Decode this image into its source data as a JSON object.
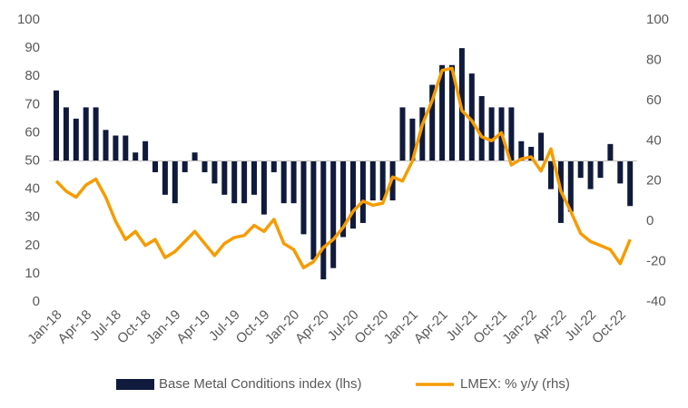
{
  "chart_data": {
    "type": "bar-line",
    "categories": [
      "Jan-18",
      null,
      null,
      "Apr-18",
      null,
      null,
      "Jul-18",
      null,
      null,
      "Oct-18",
      null,
      null,
      "Jan-19",
      null,
      null,
      "Apr-19",
      null,
      null,
      "Jul-19",
      null,
      null,
      "Oct-19",
      null,
      null,
      "Jan-20",
      null,
      null,
      "Apr-20",
      null,
      null,
      "Jul-20",
      null,
      null,
      "Oct-20",
      null,
      null,
      "Jan-21",
      null,
      null,
      "Apr-21",
      null,
      null,
      "Jul-21",
      null,
      null,
      "Oct-21",
      null,
      null,
      "Jan-22",
      null,
      null,
      "Apr-22",
      null,
      null,
      "Jul-22",
      null,
      null,
      "Oct-22",
      null
    ],
    "series": [
      {
        "name": "Base Metal Conditions index (lhs)",
        "color": "#0f1a3c",
        "axis": "y",
        "values": [
          75,
          69,
          65,
          69,
          69,
          61,
          59,
          59,
          53,
          57,
          46,
          38,
          35,
          46,
          53,
          46,
          42,
          38,
          35,
          35,
          38,
          31,
          46,
          35,
          35,
          24,
          15,
          8,
          12,
          23,
          26,
          28,
          36,
          36,
          36,
          69,
          65,
          69,
          77,
          84,
          84,
          90,
          81,
          73,
          69,
          69,
          69,
          57,
          55,
          60,
          40,
          28,
          32,
          44,
          40,
          44,
          56,
          42,
          34
        ]
      },
      {
        "name": "LMEX: % y/y (rhs)",
        "color": "#f59c00",
        "axis": "y2",
        "values": [
          20,
          15,
          12,
          18,
          21,
          12,
          0,
          -9,
          -5,
          -12,
          -9,
          -18,
          -15,
          -10,
          -5,
          -11,
          -17,
          -11,
          -8,
          -7,
          -2,
          -5,
          1,
          -11,
          -14,
          -23,
          -20,
          -13,
          -9,
          -3,
          5,
          10,
          8,
          9,
          22,
          20,
          30,
          48,
          60,
          75,
          76,
          55,
          50,
          42,
          40,
          44,
          28,
          31,
          32,
          25,
          36,
          15,
          5,
          -6,
          -10,
          -12,
          -14,
          -21,
          -9
        ]
      }
    ],
    "bar_base": 50,
    "ylim": [
      0,
      100
    ],
    "yticks": [
      0,
      10,
      20,
      30,
      40,
      50,
      60,
      70,
      80,
      90,
      100
    ],
    "y2lim": [
      -40,
      100
    ],
    "y2ticks": [
      -40,
      -20,
      0,
      20,
      40,
      60,
      80,
      100
    ],
    "legend": "bottom"
  }
}
